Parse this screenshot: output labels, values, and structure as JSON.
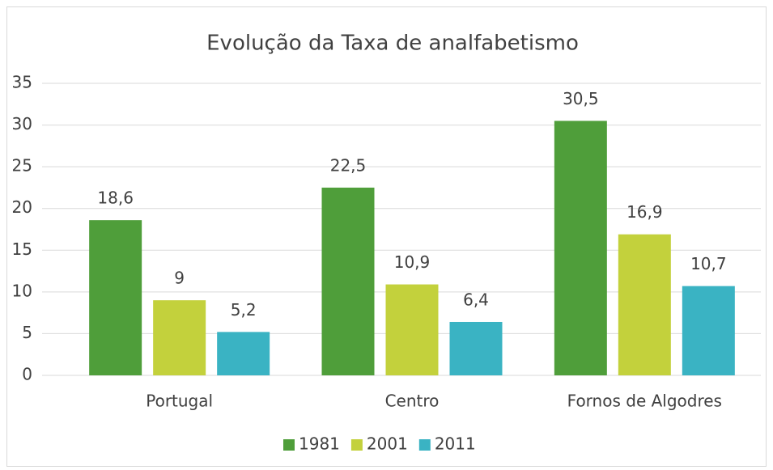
{
  "chart_data": {
    "type": "bar",
    "title": "Evolução da Taxa de analfabetismo",
    "categories": [
      "Portugal",
      "Centro",
      "Fornos de Algodres"
    ],
    "series": [
      {
        "name": "1981",
        "color": "#4f9e3a",
        "values": [
          18.6,
          22.5,
          30.5
        ],
        "value_labels": [
          "18,6",
          "22,5",
          "30,5"
        ]
      },
      {
        "name": "2001",
        "color": "#c3d13c",
        "values": [
          9,
          10.9,
          16.9
        ],
        "value_labels": [
          "9",
          "10,9",
          "16,9"
        ]
      },
      {
        "name": "2011",
        "color": "#3ab3c3",
        "values": [
          5.2,
          6.4,
          10.7
        ],
        "value_labels": [
          "5,2",
          "6,4",
          "10,7"
        ]
      }
    ],
    "ylim": [
      0,
      35
    ],
    "yticks": [
      0,
      5,
      10,
      15,
      20,
      25,
      30,
      35
    ],
    "grid": true,
    "legend": "bottom"
  }
}
